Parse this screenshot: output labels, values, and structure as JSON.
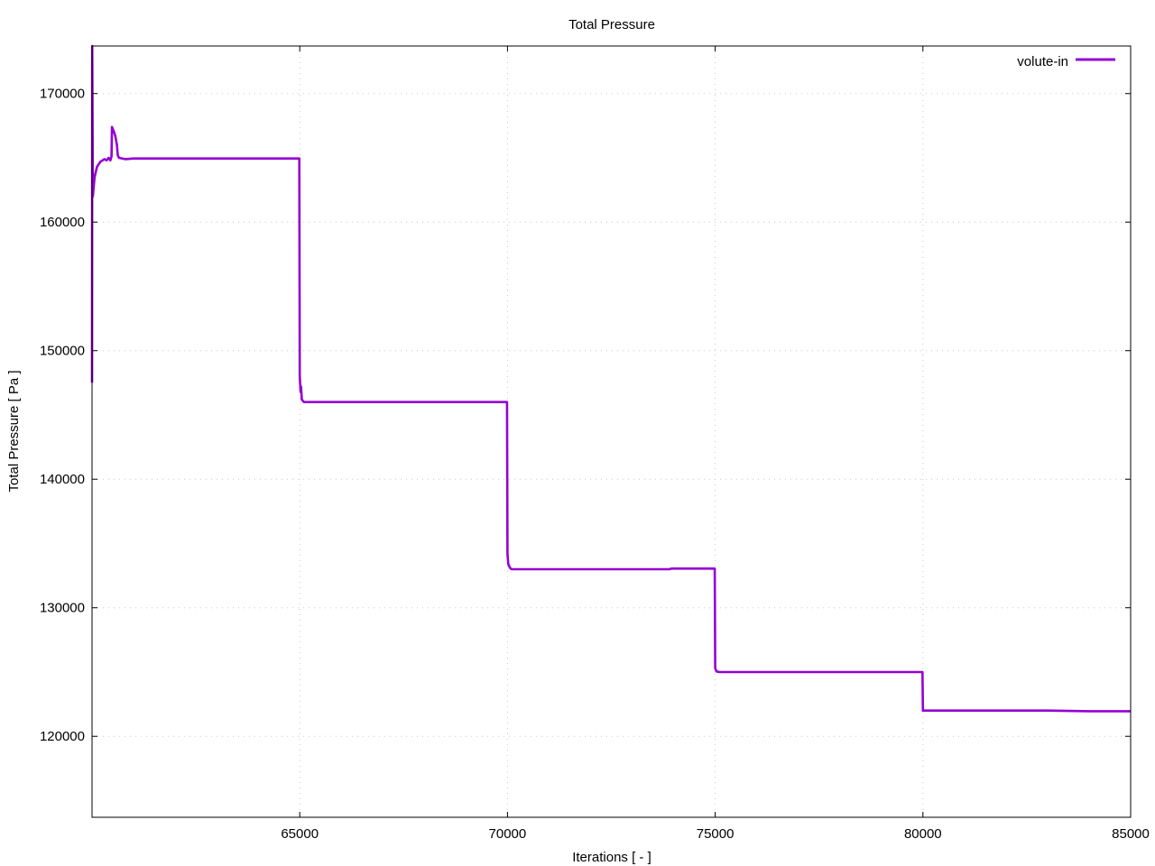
{
  "chart_data": {
    "type": "line",
    "title": "Total Pressure",
    "xlabel": "Iterations [ - ]",
    "ylabel": "Total Pressure [ Pa ]",
    "xlim": [
      60000,
      85000
    ],
    "ylim": [
      113700,
      173700
    ],
    "xticks": [
      65000,
      70000,
      75000,
      80000,
      85000
    ],
    "yticks": [
      120000,
      130000,
      140000,
      150000,
      160000,
      170000
    ],
    "grid": true,
    "legend_position": "top-right",
    "series": [
      {
        "name": "volute-in",
        "color": "#9400d3",
        "points": [
          [
            60000,
            147500
          ],
          [
            60005,
            173700
          ],
          [
            60010,
            169000
          ],
          [
            60020,
            162000
          ],
          [
            60060,
            163500
          ],
          [
            60120,
            164300
          ],
          [
            60200,
            164700
          ],
          [
            60300,
            164900
          ],
          [
            60350,
            164800
          ],
          [
            60400,
            165000
          ],
          [
            60440,
            164800
          ],
          [
            60470,
            165100
          ],
          [
            60480,
            167400
          ],
          [
            60520,
            167100
          ],
          [
            60560,
            166700
          ],
          [
            60600,
            166000
          ],
          [
            60620,
            165200
          ],
          [
            60650,
            165000
          ],
          [
            60800,
            164900
          ],
          [
            61000,
            164950
          ],
          [
            61500,
            164950
          ],
          [
            63000,
            164950
          ],
          [
            64990,
            164950
          ],
          [
            65000,
            148000
          ],
          [
            65020,
            146800
          ],
          [
            65030,
            147200
          ],
          [
            65050,
            146200
          ],
          [
            65100,
            146000
          ],
          [
            65500,
            146000
          ],
          [
            67000,
            146000
          ],
          [
            69990,
            146000
          ],
          [
            70000,
            134200
          ],
          [
            70020,
            133400
          ],
          [
            70060,
            133100
          ],
          [
            70100,
            133000
          ],
          [
            71000,
            133000
          ],
          [
            73900,
            133000
          ],
          [
            73950,
            133050
          ],
          [
            74990,
            133050
          ],
          [
            75000,
            125300
          ],
          [
            75030,
            125050
          ],
          [
            75100,
            125000
          ],
          [
            77000,
            125000
          ],
          [
            79990,
            125000
          ],
          [
            80000,
            122000
          ],
          [
            80100,
            122000
          ],
          [
            83000,
            122000
          ],
          [
            84000,
            121950
          ],
          [
            85000,
            121950
          ]
        ]
      }
    ]
  }
}
